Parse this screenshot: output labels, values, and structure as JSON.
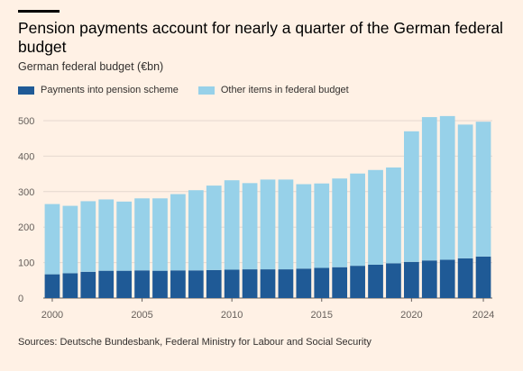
{
  "header": {
    "title": "Pension payments account for nearly a quarter of the German federal budget",
    "subtitle": "German federal budget (€bn)"
  },
  "footer": {
    "source": "Sources: Deutsche Bundesbank, Federal Ministry for Labour and Social Security"
  },
  "colors": {
    "pension": "#1f5a96",
    "other": "#97d1e9",
    "grid": "#e4d8cf",
    "background": "#fff1e5"
  },
  "chart_data": {
    "type": "bar",
    "stacked": true,
    "categories": [
      2000,
      2001,
      2002,
      2003,
      2004,
      2005,
      2006,
      2007,
      2008,
      2009,
      2010,
      2011,
      2012,
      2013,
      2014,
      2015,
      2016,
      2017,
      2018,
      2019,
      2020,
      2021,
      2022,
      2023,
      2024
    ],
    "series": [
      {
        "name": "Payments into pension scheme",
        "color": "#1f5a96",
        "values": [
          67,
          70,
          74,
          77,
          77,
          78,
          77,
          78,
          78,
          79,
          80,
          81,
          81,
          81,
          83,
          85,
          87,
          91,
          94,
          98,
          102,
          106,
          108,
          112,
          117
        ]
      },
      {
        "name": "Other items in federal budget",
        "color": "#97d1e9",
        "values": [
          198,
          190,
          199,
          201,
          195,
          203,
          204,
          215,
          226,
          238,
          252,
          243,
          253,
          253,
          238,
          238,
          250,
          260,
          267,
          270,
          368,
          404,
          405,
          377,
          380
        ]
      }
    ],
    "ylim": [
      0,
      500
    ],
    "yticks": [
      0,
      100,
      200,
      300,
      400,
      500
    ],
    "xticks": [
      2000,
      2005,
      2010,
      2015,
      2020,
      2024
    ],
    "grid": true,
    "legend": "top-left"
  }
}
